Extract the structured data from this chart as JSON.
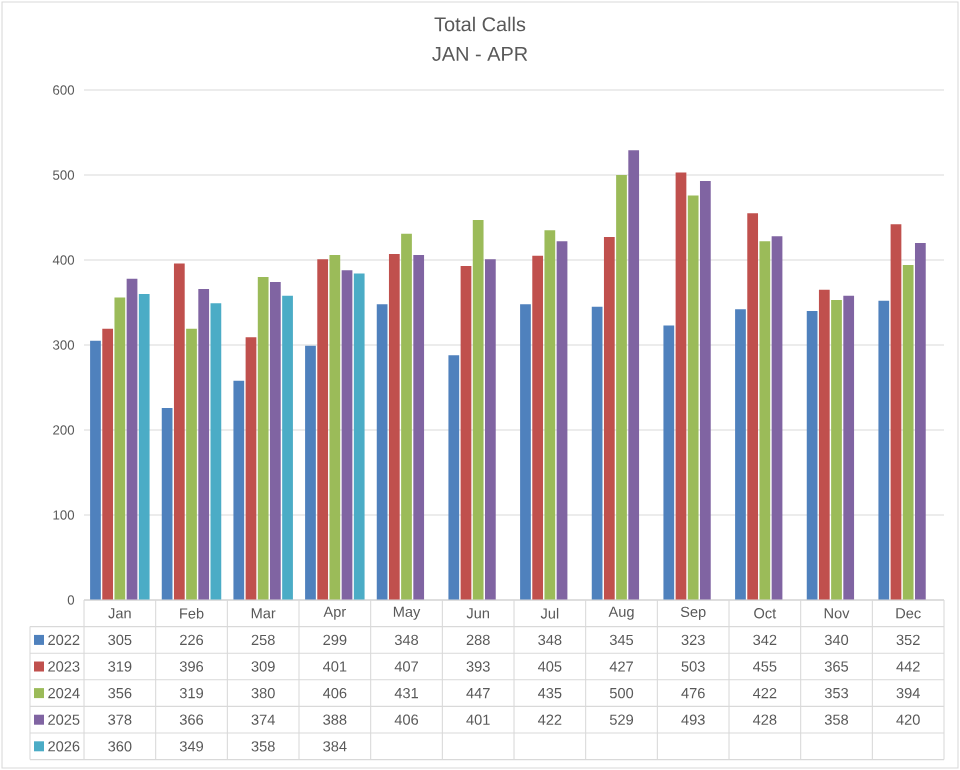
{
  "chart_data": {
    "type": "bar",
    "title": "Total Calls",
    "subtitle": "JAN - APR",
    "categories": [
      "Jan",
      "Feb",
      "Mar",
      "Apr",
      "May",
      "Jun",
      "Jul",
      "Aug",
      "Sep",
      "Oct",
      "Nov",
      "Dec"
    ],
    "series": [
      {
        "name": "2022",
        "color": "#4f81bd",
        "values": [
          305,
          226,
          258,
          299,
          348,
          288,
          348,
          345,
          323,
          342,
          340,
          352
        ]
      },
      {
        "name": "2023",
        "color": "#c0504d",
        "values": [
          319,
          396,
          309,
          401,
          407,
          393,
          405,
          427,
          503,
          455,
          365,
          442
        ]
      },
      {
        "name": "2024",
        "color": "#9bbb59",
        "values": [
          356,
          319,
          380,
          406,
          431,
          447,
          435,
          500,
          476,
          422,
          353,
          394
        ]
      },
      {
        "name": "2025",
        "color": "#8064a2",
        "values": [
          378,
          366,
          374,
          388,
          406,
          401,
          422,
          529,
          493,
          428,
          358,
          420
        ]
      },
      {
        "name": "2026",
        "color": "#4bacc6",
        "values": [
          360,
          349,
          358,
          384,
          null,
          null,
          null,
          null,
          null,
          null,
          null,
          null
        ]
      }
    ],
    "ylim": [
      0,
      600
    ],
    "yticks": [
      0,
      100,
      200,
      300,
      400,
      500,
      600
    ],
    "grid": "y",
    "legend": "bottom",
    "data_labels": true
  }
}
